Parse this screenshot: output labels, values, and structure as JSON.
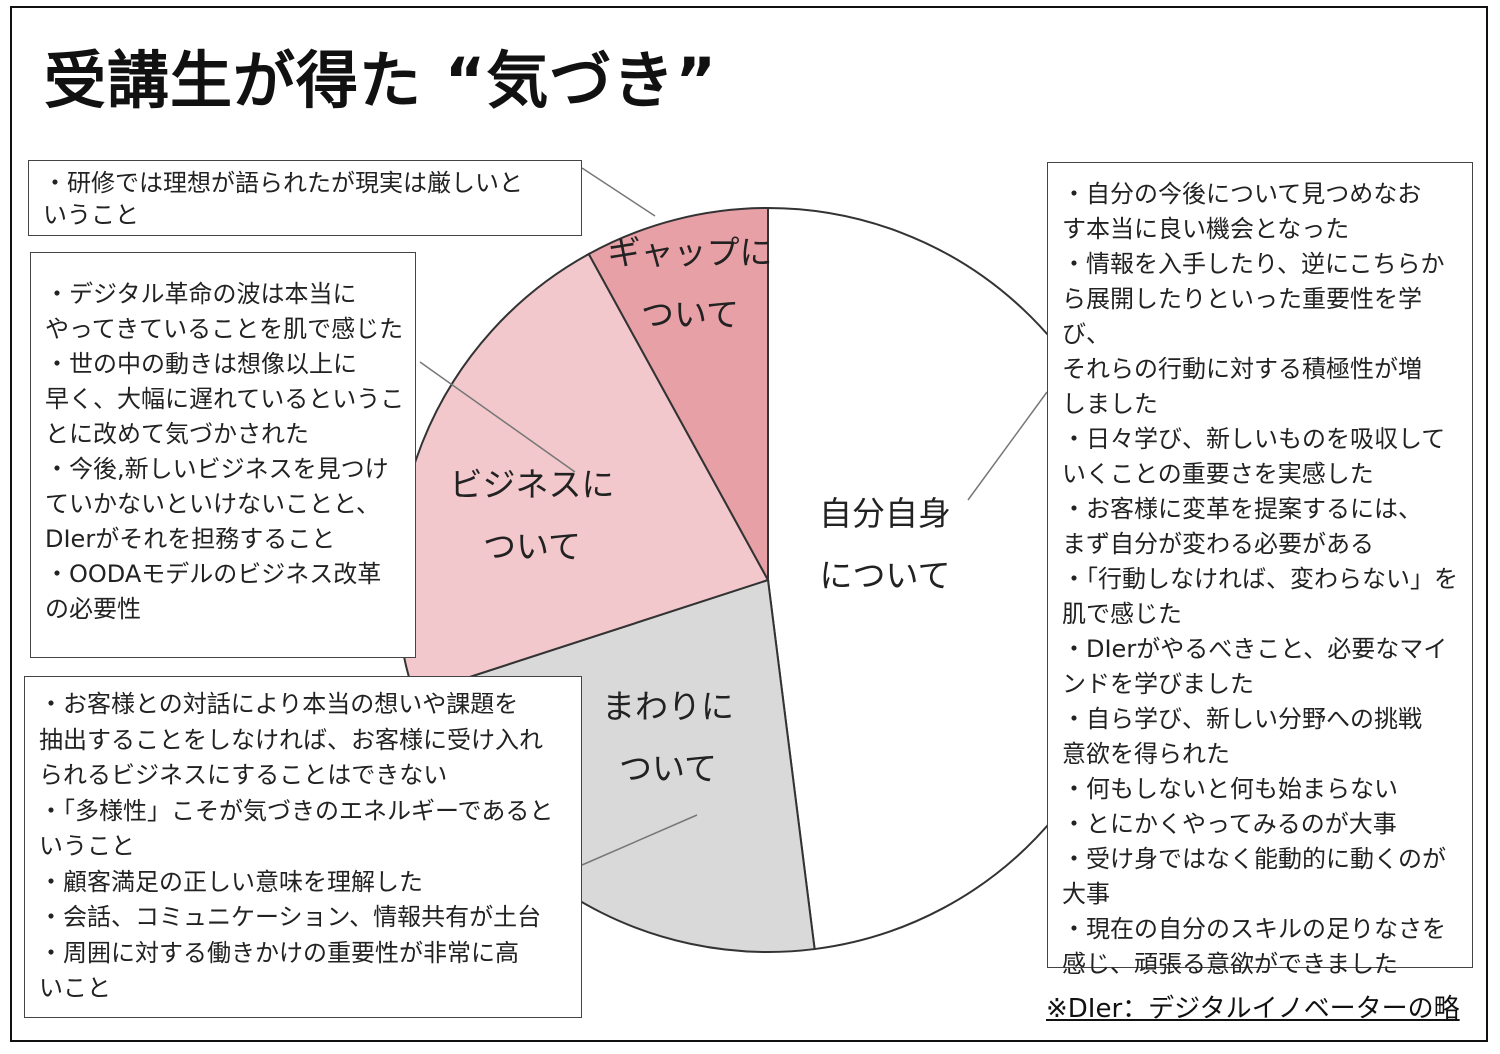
{
  "title": "受講生が得た “気づき”",
  "footnote": "※DIer：デジタルイノベーターの略",
  "colors": {
    "self": "#ffffff",
    "around": "#d9d9d9",
    "business": "#f2c8cc",
    "gap": "#e8a0a7",
    "stroke": "#333333",
    "leader": "#777777"
  },
  "chart_data": {
    "type": "pie",
    "start": "12 o'clock",
    "direction": "clockwise",
    "slices": [
      {
        "label_lines": [
          "自分自身",
          "について"
        ],
        "value": 48,
        "color": "#ffffff"
      },
      {
        "label_lines": [
          "まわりに",
          "ついて"
        ],
        "value": 22,
        "color": "#d9d9d9"
      },
      {
        "label_lines": [
          "ビジネスに",
          "ついて"
        ],
        "value": 22,
        "color": "#f2c8cc"
      },
      {
        "label_lines": [
          "ギャップに",
          "ついて"
        ],
        "value": 8,
        "color": "#e8a0a7"
      }
    ]
  },
  "boxes": {
    "gap": {
      "items": [
        "・研修では理想が語られたが現実は厳しいと",
        "いうこと"
      ]
    },
    "business": {
      "items": [
        "・デジタル革命の波は本当に",
        "やってきていることを肌で感じた",
        "・世の中の動きは想像以上に",
        "早く、大幅に遅れているというこ",
        "とに改めて気づかされた",
        "・今後,新しいビジネスを見つけ",
        "ていかないといけないことと、",
        "DIerがそれを担務すること",
        "・OODAモデルのビジネス改革",
        "の必要性"
      ]
    },
    "around": {
      "items": [
        "・お客様との対話により本当の想いや課題を",
        "抽出することをしなければ、お客様に受け入れ",
        "られるビジネスにすることはできない",
        "・「多様性」こそが気づきのエネルギーであると",
        "いうこと",
        "・顧客満足の正しい意味を理解した",
        "・会話、コミュニケーション、情報共有が土台",
        "・周囲に対する働きかけの重要性が非常に高",
        "いこと"
      ]
    },
    "self": {
      "items": [
        "・自分の今後について見つめなお",
        "す本当に良い機会となった",
        "・情報を入手したり、逆にこちらか",
        "ら展開したりといった重要性を学び、",
        "それらの行動に対する積極性が増",
        "しました",
        "・日々学び、新しいものを吸収して",
        "いくことの重要さを実感した",
        "・お客様に変革を提案するには、",
        "まず自分が変わる必要がある",
        "・「行動しなければ、変わらない」を",
        "肌で感じた",
        "・DIerがやるべきこと、必要なマイ",
        "ンドを学びました",
        "・自ら学び、新しい分野への挑戦",
        "意欲を得られた",
        "・何もしないと何も始まらない",
        "・とにかくやってみるのが大事",
        "・受け身ではなく能動的に動くのが",
        "大事",
        "・現在の自分のスキルの足りなさを",
        "感じ、頑張る意欲ができました"
      ]
    }
  }
}
